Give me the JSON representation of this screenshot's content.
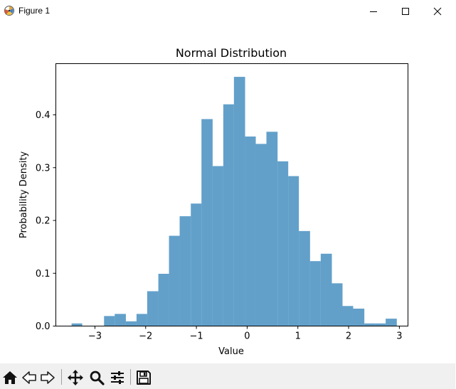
{
  "window": {
    "title": "Figure 1",
    "controls": {
      "minimize_icon": "minimize-icon",
      "maximize_icon": "maximize-icon",
      "close_icon": "close-icon"
    }
  },
  "toolbar": {
    "items": [
      "home-icon",
      "back-arrow-icon",
      "forward-arrow-icon",
      "pan-icon",
      "zoom-icon",
      "configure-subplots-icon",
      "save-icon"
    ]
  },
  "chart_data": {
    "type": "bar",
    "title": "Normal Distribution",
    "xlabel": "Value",
    "ylabel": "Probability Density",
    "xlim": [
      -3.77,
      3.17
    ],
    "ylim": [
      0,
      0.497
    ],
    "xticks": [
      -3,
      -2,
      -1,
      0,
      1,
      2,
      3
    ],
    "xtick_labels": [
      "−3",
      "−2",
      "−1",
      "0",
      "1",
      "2",
      "3"
    ],
    "yticks": [
      0.0,
      0.1,
      0.2,
      0.3,
      0.4
    ],
    "ytick_labels": [
      "0.0",
      "0.1",
      "0.2",
      "0.3",
      "0.4"
    ],
    "bar_color": "#1f77b4",
    "bar_alpha": 0.7,
    "bins": [
      {
        "x0": -3.46,
        "x1": -3.25,
        "y": 0.005
      },
      {
        "x0": -3.25,
        "x1": -3.03,
        "y": 0.0
      },
      {
        "x0": -3.03,
        "x1": -2.82,
        "y": 0.0
      },
      {
        "x0": -2.82,
        "x1": -2.61,
        "y": 0.019
      },
      {
        "x0": -2.61,
        "x1": -2.39,
        "y": 0.023
      },
      {
        "x0": -2.39,
        "x1": -2.18,
        "y": 0.009
      },
      {
        "x0": -2.18,
        "x1": -1.97,
        "y": 0.023
      },
      {
        "x0": -1.97,
        "x1": -1.75,
        "y": 0.066
      },
      {
        "x0": -1.75,
        "x1": -1.54,
        "y": 0.099
      },
      {
        "x0": -1.54,
        "x1": -1.33,
        "y": 0.171
      },
      {
        "x0": -1.33,
        "x1": -1.11,
        "y": 0.208
      },
      {
        "x0": -1.11,
        "x1": -0.9,
        "y": 0.232
      },
      {
        "x0": -0.9,
        "x1": -0.68,
        "y": 0.392
      },
      {
        "x0": -0.68,
        "x1": -0.47,
        "y": 0.303
      },
      {
        "x0": -0.47,
        "x1": -0.26,
        "y": 0.42
      },
      {
        "x0": -0.26,
        "x1": -0.04,
        "y": 0.472
      },
      {
        "x0": -0.04,
        "x1": 0.17,
        "y": 0.359
      },
      {
        "x0": 0.17,
        "x1": 0.38,
        "y": 0.345
      },
      {
        "x0": 0.38,
        "x1": 0.6,
        "y": 0.368
      },
      {
        "x0": 0.6,
        "x1": 0.81,
        "y": 0.312
      },
      {
        "x0": 0.81,
        "x1": 1.02,
        "y": 0.284
      },
      {
        "x0": 1.02,
        "x1": 1.24,
        "y": 0.18
      },
      {
        "x0": 1.24,
        "x1": 1.45,
        "y": 0.123
      },
      {
        "x0": 1.45,
        "x1": 1.67,
        "y": 0.137
      },
      {
        "x0": 1.67,
        "x1": 1.88,
        "y": 0.081
      },
      {
        "x0": 1.88,
        "x1": 2.09,
        "y": 0.038
      },
      {
        "x0": 2.09,
        "x1": 2.31,
        "y": 0.033
      },
      {
        "x0": 2.31,
        "x1": 2.52,
        "y": 0.005
      },
      {
        "x0": 2.52,
        "x1": 2.73,
        "y": 0.005
      },
      {
        "x0": 2.73,
        "x1": 2.95,
        "y": 0.014
      }
    ]
  }
}
